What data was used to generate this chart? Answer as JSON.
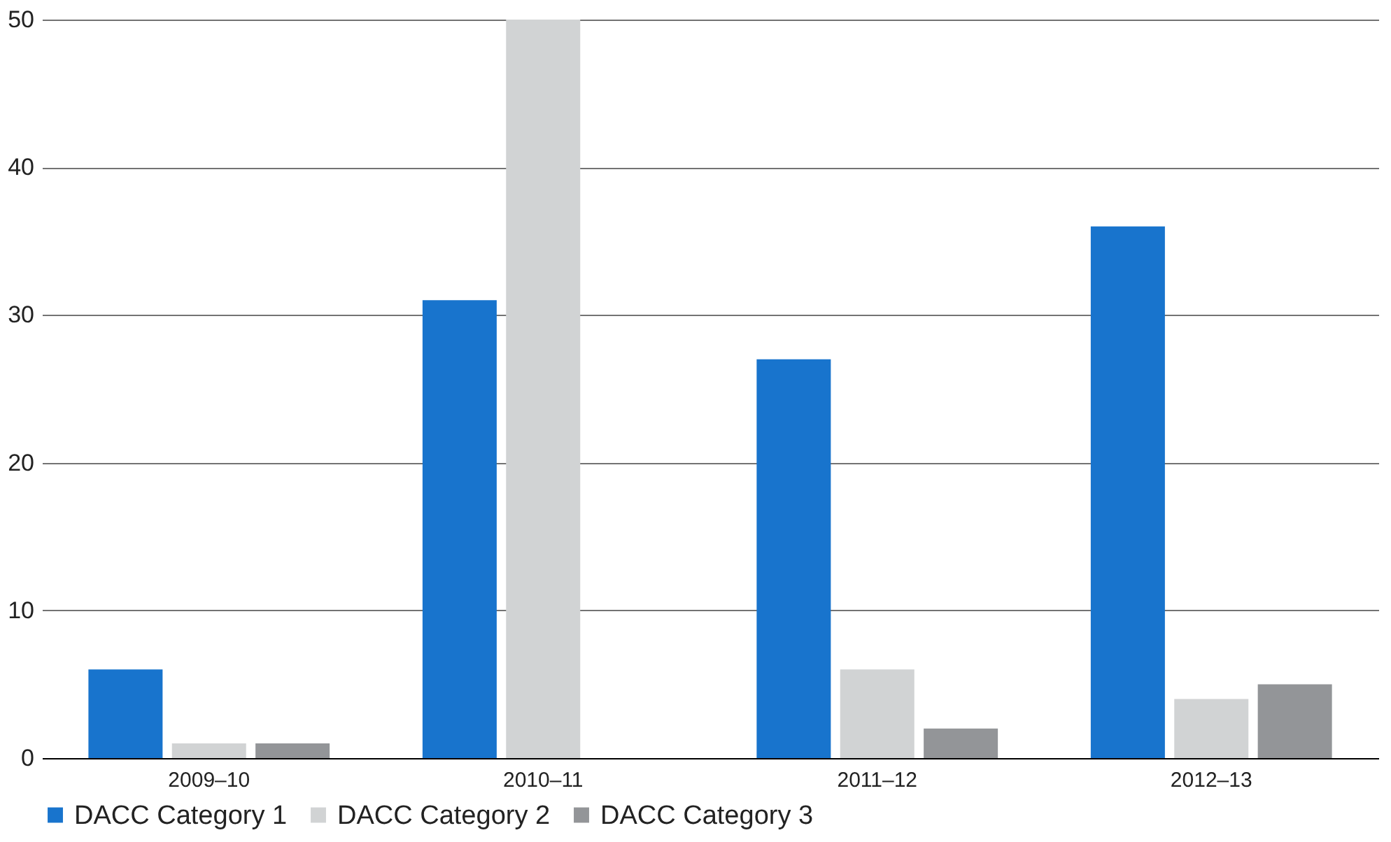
{
  "chart_data": {
    "type": "bar",
    "categories": [
      "2009–10",
      "2010–11",
      "2011–12",
      "2012–13"
    ],
    "series": [
      {
        "name": "DACC Category 1",
        "color": "#1874cd",
        "values": [
          6,
          31,
          27,
          36
        ]
      },
      {
        "name": "DACC Category 2",
        "color": "#d1d3d4",
        "values": [
          1,
          50,
          6,
          4
        ]
      },
      {
        "name": "DACC Category 3",
        "color": "#939598",
        "values": [
          1,
          0,
          2,
          5
        ]
      }
    ],
    "ylim": [
      0,
      50
    ],
    "yticks": [
      0,
      10,
      20,
      30,
      40,
      50
    ],
    "grid": "y",
    "legend": "bottom left"
  }
}
